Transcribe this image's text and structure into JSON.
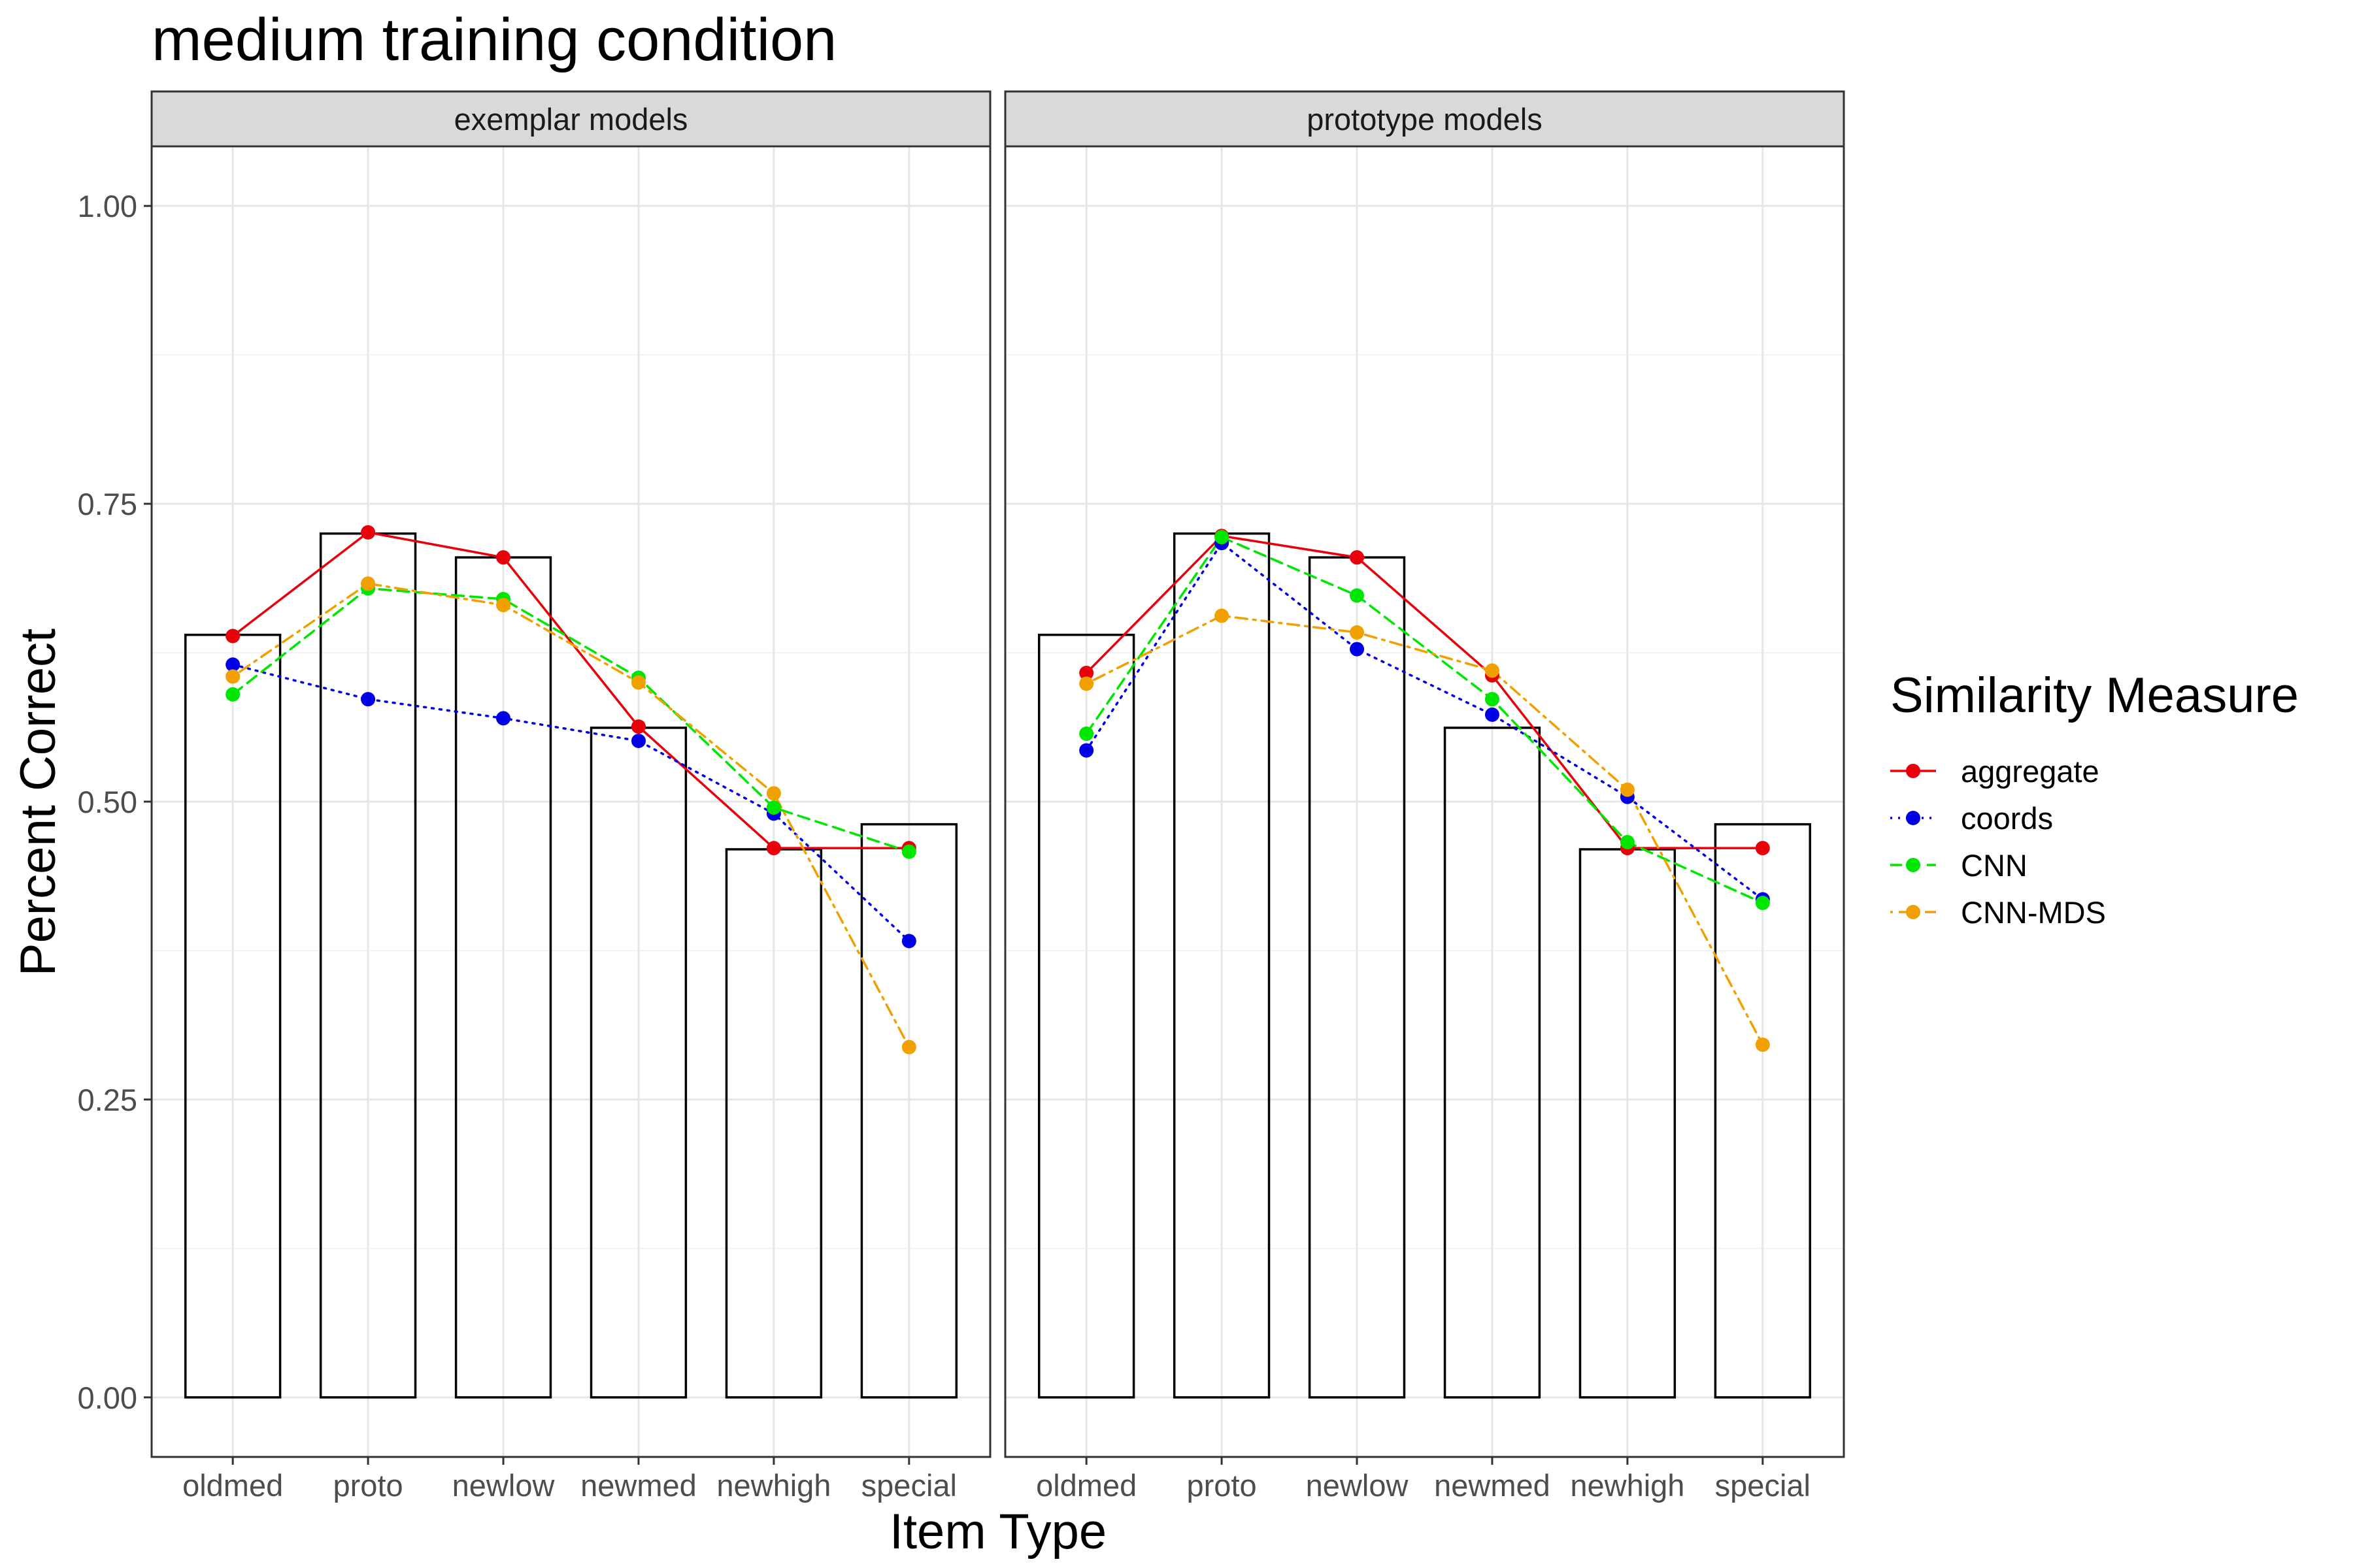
{
  "chart_data": {
    "type": "bar",
    "title": "medium training condition",
    "xlabel": "Item Type",
    "ylabel": "Percent Correct",
    "ylim": [
      -0.05,
      1.05
    ],
    "yticks": [
      "0.00",
      "0.25",
      "0.50",
      "0.75",
      "1.00"
    ],
    "categories": [
      "oldmed",
      "proto",
      "newlow",
      "newmed",
      "newhigh",
      "special"
    ],
    "grid": true,
    "legend": {
      "title": "Similarity Measure",
      "position": "right",
      "entries": [
        "aggregate",
        "coords",
        "CNN",
        "CNN-MDS"
      ]
    },
    "panels": [
      {
        "name": "exemplar models",
        "bars": [
          0.64,
          0.725,
          0.705,
          0.562,
          0.46,
          0.481
        ],
        "series": [
          {
            "name": "aggregate",
            "color": "#e8000b",
            "dash": "solid",
            "values": [
              0.639,
              0.726,
              0.705,
              0.563,
              0.461,
              0.461
            ]
          },
          {
            "name": "coords",
            "color": "#0000e6",
            "dash": "dotted",
            "values": [
              0.615,
              0.586,
              0.57,
              0.551,
              0.49,
              0.383
            ]
          },
          {
            "name": "CNN",
            "color": "#00e600",
            "dash": "dashed",
            "values": [
              0.59,
              0.679,
              0.67,
              0.604,
              0.495,
              0.458
            ]
          },
          {
            "name": "CNN-MDS",
            "color": "#f0a000",
            "dash": "dotdash",
            "values": [
              0.605,
              0.683,
              0.665,
              0.6,
              0.507,
              0.294
            ]
          }
        ]
      },
      {
        "name": "prototype models",
        "bars": [
          0.64,
          0.725,
          0.705,
          0.562,
          0.46,
          0.481
        ],
        "series": [
          {
            "name": "aggregate",
            "color": "#e8000b",
            "dash": "solid",
            "values": [
              0.608,
              0.723,
              0.705,
              0.606,
              0.461,
              0.461
            ]
          },
          {
            "name": "coords",
            "color": "#0000e6",
            "dash": "dotted",
            "values": [
              0.543,
              0.717,
              0.628,
              0.573,
              0.504,
              0.418
            ]
          },
          {
            "name": "CNN",
            "color": "#00e600",
            "dash": "dashed",
            "values": [
              0.557,
              0.722,
              0.673,
              0.586,
              0.466,
              0.415
            ]
          },
          {
            "name": "CNN-MDS",
            "color": "#f0a000",
            "dash": "dotdash",
            "values": [
              0.599,
              0.656,
              0.642,
              0.61,
              0.51,
              0.296
            ]
          }
        ]
      }
    ]
  }
}
